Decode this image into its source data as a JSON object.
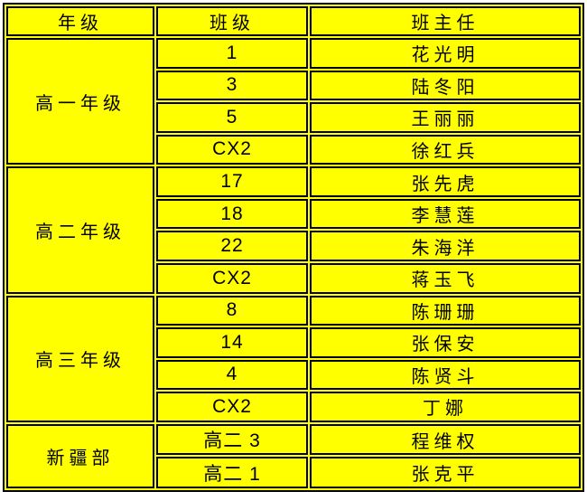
{
  "page": {
    "background": "#ffffff"
  },
  "table": {
    "title": "class-teacher-roster",
    "colors": {
      "cell_bg": "#ffff00",
      "border": "#000000",
      "text": "#000000"
    },
    "headers": [
      "年级",
      "班级",
      "班主任"
    ],
    "groups": [
      {
        "grade": "高一年级",
        "rows": [
          {
            "class_label": "1",
            "teacher": "花光明"
          },
          {
            "class_label": "3",
            "teacher": "陆冬阳"
          },
          {
            "class_label": "5",
            "teacher": "王丽丽"
          },
          {
            "class_label": "CX2",
            "teacher": "徐红兵"
          }
        ]
      },
      {
        "grade": "高二年级",
        "rows": [
          {
            "class_label": "17",
            "teacher": "张先虎"
          },
          {
            "class_label": "18",
            "teacher": "李慧莲"
          },
          {
            "class_label": "22",
            "teacher": "朱海洋"
          },
          {
            "class_label": "CX2",
            "teacher": "蒋玉飞"
          }
        ]
      },
      {
        "grade": "高三年级",
        "rows": [
          {
            "class_label": "8",
            "teacher": "陈珊珊"
          },
          {
            "class_label": "14",
            "teacher": "张保安"
          },
          {
            "class_label": "4",
            "teacher": "陈贤斗"
          },
          {
            "class_label": "CX2",
            "teacher": "丁娜"
          }
        ]
      },
      {
        "grade": "新疆部",
        "rows": [
          {
            "class_label": "高二 3",
            "teacher": "程维权"
          },
          {
            "class_label": "高二 1",
            "teacher": "张克平"
          }
        ]
      }
    ]
  }
}
